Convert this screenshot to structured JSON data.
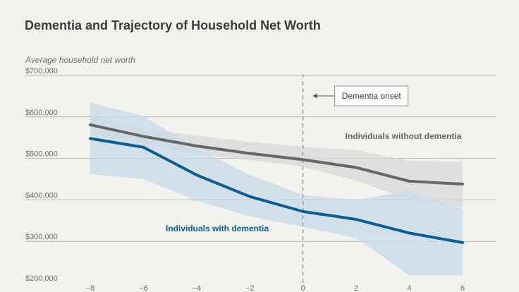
{
  "chart_data": {
    "type": "line",
    "title": "Dementia and Trajectory of Household Net Worth",
    "ylabel": "Average household net worth",
    "xlabel": "",
    "x": [
      -8,
      -6,
      -4,
      -2,
      0,
      2,
      4,
      6
    ],
    "x_ticks": [
      "−8",
      "−6",
      "−4",
      "−2",
      "0",
      "2",
      "4",
      "6"
    ],
    "y_ticks": [
      "$700,000",
      "$600,000",
      "$500,000",
      "$400,000",
      "$300,000",
      "$200,000"
    ],
    "ylim": [
      200000,
      700000
    ],
    "xlim": [
      -8,
      6
    ],
    "grid": "horizontal",
    "series": [
      {
        "name": "Individuals without dementia",
        "color": "#666666",
        "band_color": "#d9d9d9",
        "values": [
          581000,
          553000,
          530000,
          512000,
          497000,
          478000,
          445000,
          438000
        ],
        "ci_lower": [
          558000,
          535000,
          510000,
          496000,
          480000,
          446000,
          400000,
          382000
        ],
        "ci_upper": [
          602000,
          572000,
          555000,
          540000,
          528000,
          520000,
          494000,
          492000
        ]
      },
      {
        "name": "Individuals with dementia",
        "color": "#0b5d96",
        "band_color": "#c9dbe9",
        "values": [
          548000,
          527000,
          460000,
          408000,
          372000,
          353000,
          320000,
          297000
        ],
        "ci_lower": [
          462000,
          450000,
          398000,
          360000,
          335000,
          308000,
          218000,
          218000
        ],
        "ci_upper": [
          635000,
          602000,
          525000,
          460000,
          412000,
          400000,
          422000,
          378000
        ]
      }
    ],
    "annotations": [
      {
        "text": "Dementia onset",
        "x": 0
      }
    ]
  }
}
